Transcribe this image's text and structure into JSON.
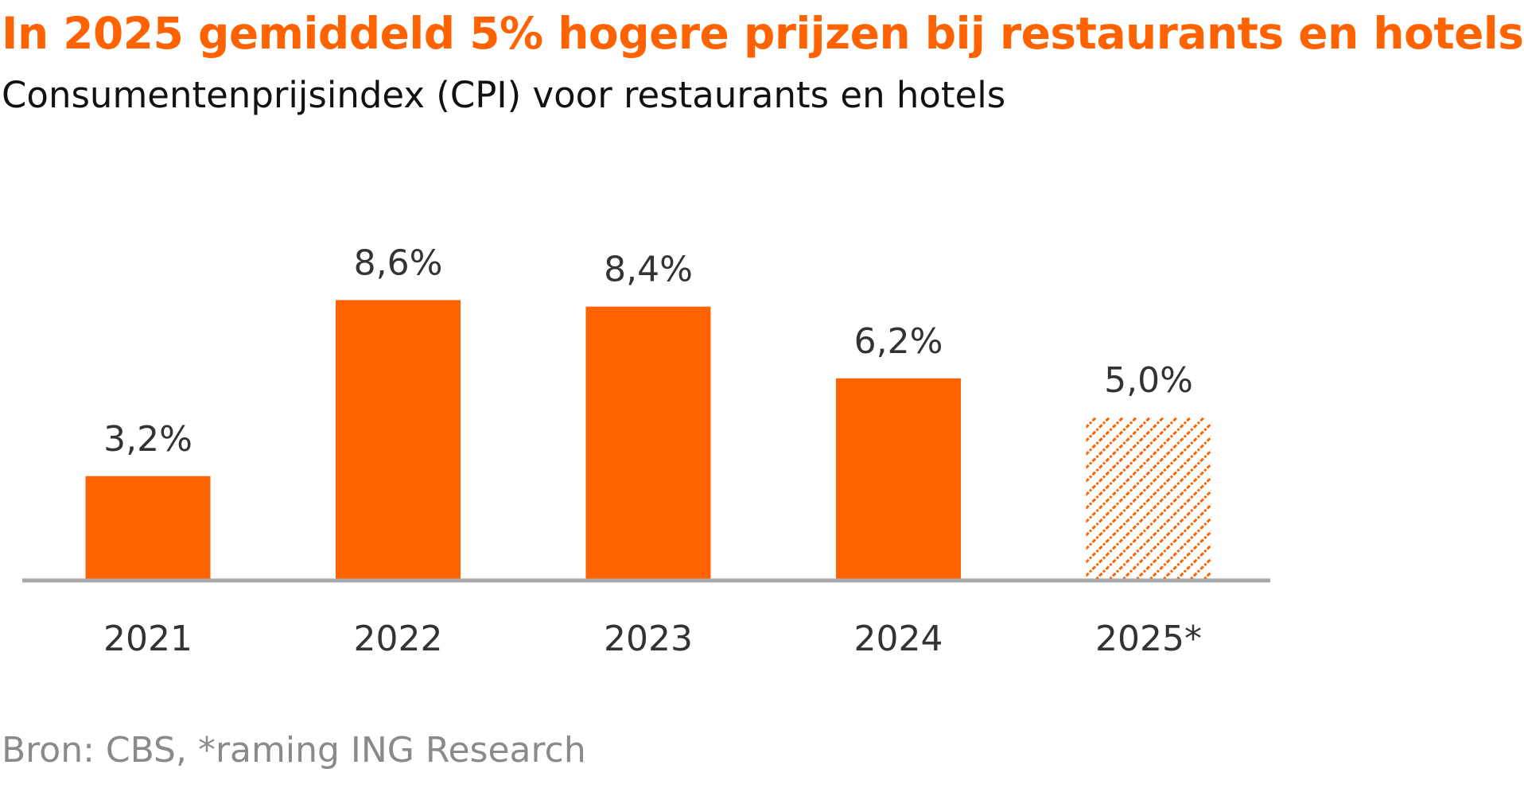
{
  "chart_data": {
    "type": "bar",
    "title": "In 2025 gemiddeld 5% hogere prijzen bij restaurants en hotels",
    "subtitle": "Consumentenprijsindex (CPI) voor restaurants en hotels",
    "categories": [
      "2021",
      "2022",
      "2023",
      "2024",
      "2025*"
    ],
    "values": [
      3.2,
      8.6,
      8.4,
      6.2,
      5.0
    ],
    "value_labels": [
      "3,2%",
      "8,6%",
      "8,4%",
      "6,2%",
      "5,0%"
    ],
    "forecast": [
      false,
      false,
      false,
      false,
      true
    ],
    "xlabel": "",
    "ylabel": "",
    "ylim": [
      0,
      10
    ],
    "grid": false,
    "legend": "none",
    "source": "Bron: CBS, *raming ING Research"
  },
  "colors": {
    "bar": "#FF6200",
    "axis": "#a8a8a8",
    "title": "#FF6200",
    "source": "#8a8a8a"
  }
}
